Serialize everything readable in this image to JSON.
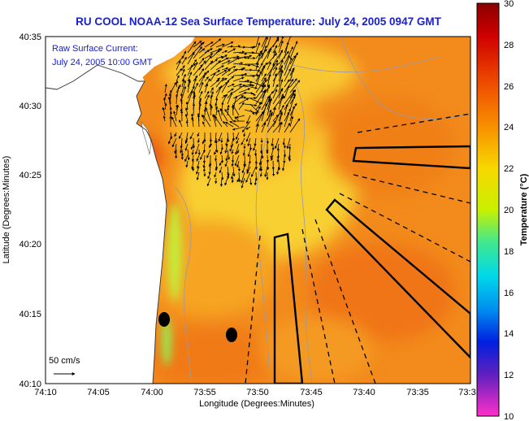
{
  "title": "RU COOL  NOAA-12  Sea Surface Temperature:  July 24, 2005 0947 GMT",
  "current_legend": {
    "line1": "Raw Surface Current:",
    "line2": "July 24, 2005 10:00 GMT"
  },
  "scale_label": "50 cm/s",
  "colorbar": {
    "label": "Temperature (°C)",
    "ticks": [
      "30",
      "28",
      "26",
      "24",
      "22",
      "20",
      "18",
      "16",
      "14",
      "12",
      "10"
    ],
    "min": 10,
    "max": 30
  },
  "axes": {
    "xlabel": "Longitude (Degrees:Minutes)",
    "ylabel": "Latitude (Degrees:Minutes)",
    "xticks": [
      "74:10",
      "74:05",
      "74:00",
      "73:55",
      "73:50",
      "73:45",
      "73:40",
      "73:35",
      "73:3"
    ],
    "yticks": [
      "40:35",
      "40:30",
      "40:25",
      "40:20",
      "40:15",
      "40:10"
    ]
  },
  "colors": {
    "title": "#1a22c8",
    "land": "#ffffff",
    "sst_warm": "#f07818",
    "sst_mid": "#f8b020",
    "sst_cool": "#f8e030",
    "coastal_cool": "#40e0a0"
  }
}
